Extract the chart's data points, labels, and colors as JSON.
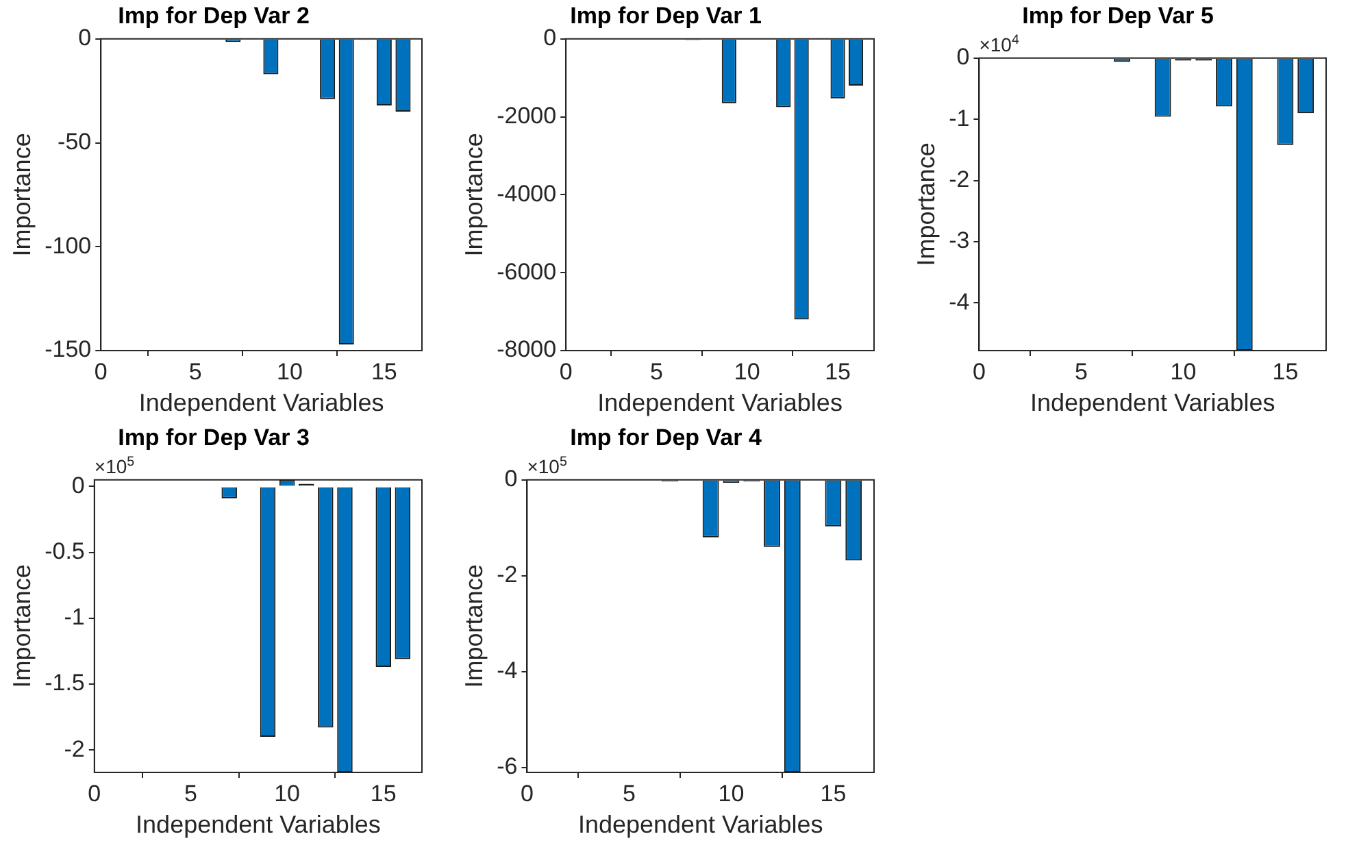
{
  "chart_data": [
    {
      "type": "bar",
      "title": "Imp for Dep Var 2",
      "xlabel": "Independent Variables",
      "ylabel": "Importance",
      "color": "#0072bd",
      "x": [
        1,
        2,
        3,
        4,
        5,
        6,
        7,
        8,
        9,
        10,
        11,
        12,
        13,
        14,
        15,
        16
      ],
      "values": [
        0,
        0,
        0,
        0,
        0,
        0,
        -1.5,
        0,
        -17,
        0,
        0,
        -29,
        -147,
        -0.5,
        -32,
        -35
      ],
      "xlim": [
        0,
        17
      ],
      "xticks": [
        0,
        5,
        10,
        15
      ],
      "ylim": [
        -150,
        0
      ],
      "yticks": [
        -150,
        -100,
        -50,
        0
      ]
    },
    {
      "type": "bar",
      "title": "Imp for Dep Var 1",
      "xlabel": "Independent Variables",
      "ylabel": "Importance",
      "color": "#0072bd",
      "x": [
        1,
        2,
        3,
        4,
        5,
        6,
        7,
        8,
        9,
        10,
        11,
        12,
        13,
        14,
        15,
        16
      ],
      "values": [
        0,
        0,
        0,
        0,
        0,
        0,
        -30,
        0,
        -1650,
        0,
        0,
        -1750,
        -7200,
        0,
        -1530,
        -1200
      ],
      "xlim": [
        0,
        17
      ],
      "xticks": [
        0,
        5,
        10,
        15
      ],
      "ylim": [
        -8000,
        0
      ],
      "yticks": [
        -8000,
        -6000,
        -4000,
        -2000,
        0
      ]
    },
    {
      "type": "bar",
      "title": "Imp for Dep Var 5",
      "xlabel": "Independent Variables",
      "ylabel": "Importance",
      "color": "#0072bd",
      "annotations": [
        "×10$^{4}$"
      ],
      "x": [
        1,
        2,
        3,
        4,
        5,
        6,
        7,
        8,
        9,
        10,
        11,
        12,
        13,
        14,
        15,
        16
      ],
      "values": [
        0,
        0,
        0,
        0,
        0,
        0,
        -0.06,
        0,
        -0.96,
        -0.04,
        -0.04,
        -0.79,
        -4.78,
        0,
        -1.42,
        -0.9
      ],
      "xlim": [
        0,
        17
      ],
      "xticks": [
        0,
        5,
        10,
        15
      ],
      "ylim": [
        -4.78,
        0
      ],
      "yticks": [
        -4,
        -3,
        -2,
        -1,
        0
      ]
    },
    {
      "type": "bar",
      "title": "Imp for Dep Var 3",
      "xlabel": "Independent Variables",
      "ylabel": "Importance",
      "color": "#0072bd",
      "annotations": [
        "×10$^{5}$"
      ],
      "x": [
        1,
        2,
        3,
        4,
        5,
        6,
        7,
        8,
        9,
        10,
        11,
        12,
        13,
        14,
        15,
        16
      ],
      "values": [
        0,
        0,
        0,
        0,
        0,
        0,
        -0.09,
        0,
        -1.9,
        0.05,
        0.02,
        -1.83,
        -2.17,
        0,
        -1.37,
        -1.31
      ],
      "xlim": [
        0,
        17
      ],
      "xticks": [
        0,
        5,
        10,
        15
      ],
      "ylim": [
        -2.17,
        0.05
      ],
      "yticks": [
        -2,
        -1.5,
        -1,
        -0.5,
        0
      ]
    },
    {
      "type": "bar",
      "title": "Imp for Dep Var 4",
      "xlabel": "Independent Variables",
      "ylabel": "Importance",
      "color": "#0072bd",
      "annotations": [
        "×10$^{5}$"
      ],
      "x": [
        1,
        2,
        3,
        4,
        5,
        6,
        7,
        8,
        9,
        10,
        11,
        12,
        13,
        14,
        15,
        16
      ],
      "values": [
        0,
        0,
        0,
        0,
        0,
        0,
        -0.03,
        0,
        -1.2,
        -0.06,
        -0.03,
        -1.4,
        -6.1,
        0,
        -0.97,
        -1.68
      ],
      "xlim": [
        0,
        17
      ],
      "xticks": [
        0,
        5,
        10,
        15
      ],
      "ylim": [
        -6.1,
        0
      ],
      "yticks": [
        -6,
        -4,
        -2,
        0
      ]
    }
  ]
}
